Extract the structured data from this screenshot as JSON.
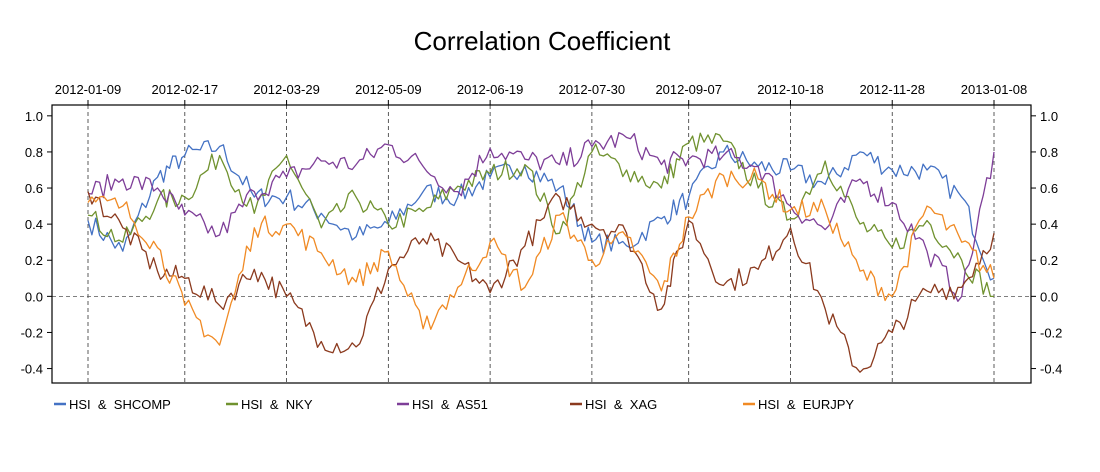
{
  "chart_data": {
    "type": "line",
    "title": "Correlation Coefficient",
    "xlabel": "",
    "ylabel": "",
    "x_ticks": [
      "2012-01-09",
      "2012-02-17",
      "2012-03-29",
      "2012-05-09",
      "2012-06-19",
      "2012-07-30",
      "2012-09-07",
      "2012-10-18",
      "2012-11-28",
      "2013-01-08"
    ],
    "y_ticks": [
      "1.0",
      "0.8",
      "0.6",
      "0.4",
      "0.2",
      "0.0",
      "-0.2",
      "-0.4"
    ],
    "ylim": [
      -0.48,
      1.06
    ],
    "x_range": [
      "2012-01-09",
      "2013-01-08"
    ],
    "vertical_grid": "dashed at x tick dates",
    "zero_line": "dashed",
    "legend_position": "bottom",
    "x": [
      "2012-01-09",
      "2012-01-23",
      "2012-02-06",
      "2012-02-17",
      "2012-03-02",
      "2012-03-16",
      "2012-03-29",
      "2012-04-12",
      "2012-04-26",
      "2012-05-09",
      "2012-05-23",
      "2012-06-06",
      "2012-06-19",
      "2012-07-03",
      "2012-07-17",
      "2012-07-30",
      "2012-08-13",
      "2012-08-27",
      "2012-09-07",
      "2012-09-21",
      "2012-10-05",
      "2012-10-18",
      "2012-11-01",
      "2012-11-15",
      "2012-11-28",
      "2012-12-12",
      "2012-12-26",
      "2013-01-08"
    ],
    "series": [
      {
        "name": "HSI  &  SHCOMP",
        "color": "#4472C4",
        "values": [
          0.42,
          0.25,
          0.66,
          0.78,
          0.83,
          0.55,
          0.55,
          0.46,
          0.33,
          0.4,
          0.58,
          0.55,
          0.66,
          0.72,
          0.6,
          0.3,
          0.28,
          0.43,
          0.55,
          0.8,
          0.72,
          0.7,
          0.62,
          0.8,
          0.7,
          0.7,
          0.55,
          0.1
        ]
      },
      {
        "name": "HSI  &  NKY",
        "color": "#70922F",
        "values": [
          0.45,
          0.3,
          0.53,
          0.55,
          0.78,
          0.46,
          0.78,
          0.38,
          0.55,
          0.4,
          0.47,
          0.61,
          0.68,
          0.73,
          0.35,
          0.8,
          0.7,
          0.6,
          0.85,
          0.86,
          0.6,
          0.43,
          0.75,
          0.4,
          0.27,
          0.42,
          0.2,
          0.0
        ]
      },
      {
        "name": "HSI  &  AS51",
        "color": "#7E3E98",
        "values": [
          0.57,
          0.65,
          0.6,
          0.45,
          0.34,
          0.58,
          0.66,
          0.75,
          0.73,
          0.84,
          0.72,
          0.58,
          0.82,
          0.76,
          0.73,
          0.83,
          0.88,
          0.73,
          0.76,
          0.78,
          0.72,
          0.5,
          0.37,
          0.65,
          0.52,
          0.25,
          0.0,
          0.8
        ]
      },
      {
        "name": "HSI  &  XAG",
        "color": "#8B3A1E",
        "values": [
          0.58,
          0.38,
          0.14,
          0.1,
          -0.05,
          0.15,
          0.0,
          -0.25,
          -0.28,
          0.15,
          0.32,
          0.2,
          0.02,
          0.28,
          0.55,
          0.4,
          0.35,
          -0.07,
          0.42,
          0.06,
          0.15,
          0.38,
          -0.07,
          -0.42,
          -0.2,
          0.03,
          0.05,
          0.35
        ]
      },
      {
        "name": "HSI  &  EURJPY",
        "color": "#F08A24",
        "values": [
          0.52,
          0.5,
          0.27,
          -0.05,
          -0.27,
          0.38,
          0.4,
          0.24,
          0.08,
          0.25,
          -0.18,
          0.05,
          0.3,
          0.05,
          0.45,
          0.2,
          0.33,
          0.03,
          0.44,
          0.67,
          0.65,
          0.48,
          0.48,
          0.14,
          0.0,
          0.5,
          0.3,
          0.1
        ]
      }
    ]
  }
}
